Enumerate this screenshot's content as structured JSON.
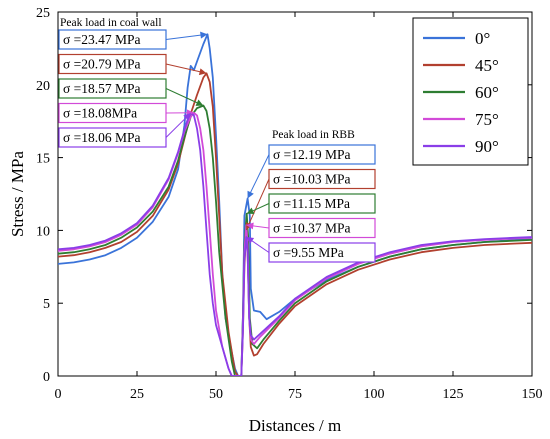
{
  "chart_data": {
    "type": "line",
    "xlabel": "Distances / m",
    "ylabel": "Stress / MPa",
    "xlim": [
      0,
      150
    ],
    "ylim": [
      0,
      25
    ],
    "xticks": [
      "0",
      "25",
      "50",
      "75",
      "100",
      "125",
      "150"
    ],
    "yticks": [
      "0",
      "5",
      "10",
      "15",
      "20",
      "25"
    ],
    "grid": false,
    "legend_position": "top-right",
    "series": [
      {
        "name": "0°",
        "color": "#3a73d9",
        "points": [
          [
            0,
            7.7
          ],
          [
            5,
            7.8
          ],
          [
            10,
            8.0
          ],
          [
            15,
            8.3
          ],
          [
            20,
            8.8
          ],
          [
            25,
            9.5
          ],
          [
            30,
            10.6
          ],
          [
            35,
            12.3
          ],
          [
            38,
            14.2
          ],
          [
            40,
            17.2
          ],
          [
            41,
            19.8
          ],
          [
            42,
            21.3
          ],
          [
            43,
            21.0
          ],
          [
            44,
            21.6
          ],
          [
            46,
            22.8
          ],
          [
            47.3,
            23.47
          ],
          [
            48,
            22.5
          ],
          [
            49,
            20.5
          ],
          [
            50,
            16.5
          ],
          [
            51,
            12.0
          ],
          [
            52,
            7.0
          ],
          [
            53,
            4.0
          ],
          [
            55,
            1.6
          ],
          [
            56,
            0.5
          ],
          [
            57,
            0.0
          ],
          [
            58,
            0.0
          ],
          [
            58.5,
            4.0
          ],
          [
            59,
            11.0
          ],
          [
            60,
            12.19
          ],
          [
            60.7,
            11.0
          ],
          [
            61,
            6.0
          ],
          [
            62,
            4.5
          ],
          [
            64,
            4.4
          ],
          [
            66,
            3.9
          ],
          [
            70,
            4.4
          ],
          [
            75,
            5.3
          ],
          [
            85,
            6.6
          ],
          [
            95,
            7.5
          ],
          [
            105,
            8.2
          ],
          [
            115,
            8.7
          ],
          [
            125,
            9.0
          ],
          [
            135,
            9.2
          ],
          [
            145,
            9.35
          ],
          [
            150,
            9.4
          ]
        ]
      },
      {
        "name": "45°",
        "color": "#b2402f",
        "points": [
          [
            0,
            8.2
          ],
          [
            5,
            8.3
          ],
          [
            10,
            8.5
          ],
          [
            15,
            8.8
          ],
          [
            20,
            9.2
          ],
          [
            25,
            9.9
          ],
          [
            30,
            11.0
          ],
          [
            35,
            12.8
          ],
          [
            38,
            14.6
          ],
          [
            40,
            16.3
          ],
          [
            42,
            18.0
          ],
          [
            44,
            19.3
          ],
          [
            46,
            20.5
          ],
          [
            47,
            20.79
          ],
          [
            48,
            20.2
          ],
          [
            49,
            18.5
          ],
          [
            50,
            15.0
          ],
          [
            51,
            11.0
          ],
          [
            52,
            7.0
          ],
          [
            54,
            3.0
          ],
          [
            56,
            0.3
          ],
          [
            57,
            0.0
          ],
          [
            58,
            0.0
          ],
          [
            58.5,
            3.0
          ],
          [
            59,
            7.5
          ],
          [
            59.6,
            10.03
          ],
          [
            60,
            8.5
          ],
          [
            60.5,
            4.0
          ],
          [
            61,
            2.0
          ],
          [
            62,
            1.4
          ],
          [
            63,
            1.5
          ],
          [
            65,
            2.2
          ],
          [
            70,
            3.6
          ],
          [
            75,
            4.8
          ],
          [
            85,
            6.3
          ],
          [
            95,
            7.3
          ],
          [
            105,
            8.0
          ],
          [
            115,
            8.5
          ],
          [
            125,
            8.8
          ],
          [
            135,
            9.0
          ],
          [
            145,
            9.1
          ],
          [
            150,
            9.15
          ]
        ]
      },
      {
        "name": "60°",
        "color": "#2e7d32",
        "points": [
          [
            0,
            8.4
          ],
          [
            5,
            8.5
          ],
          [
            10,
            8.7
          ],
          [
            15,
            9.0
          ],
          [
            20,
            9.5
          ],
          [
            25,
            10.2
          ],
          [
            30,
            11.3
          ],
          [
            35,
            13.0
          ],
          [
            38,
            14.8
          ],
          [
            40,
            16.4
          ],
          [
            42,
            17.8
          ],
          [
            44,
            18.4
          ],
          [
            46,
            18.57
          ],
          [
            47,
            18.2
          ],
          [
            48,
            17.0
          ],
          [
            49,
            15.0
          ],
          [
            50,
            12.0
          ],
          [
            51,
            8.5
          ],
          [
            53,
            4.0
          ],
          [
            55,
            1.0
          ],
          [
            56,
            0.0
          ],
          [
            58,
            0.0
          ],
          [
            58.5,
            4.0
          ],
          [
            59,
            9.0
          ],
          [
            59.7,
            11.15
          ],
          [
            60.2,
            9.5
          ],
          [
            60.7,
            4.0
          ],
          [
            61.5,
            2.2
          ],
          [
            63,
            1.9
          ],
          [
            65,
            2.5
          ],
          [
            70,
            3.8
          ],
          [
            75,
            5.0
          ],
          [
            85,
            6.5
          ],
          [
            95,
            7.5
          ],
          [
            105,
            8.2
          ],
          [
            115,
            8.7
          ],
          [
            125,
            9.0
          ],
          [
            135,
            9.2
          ],
          [
            145,
            9.3
          ],
          [
            150,
            9.35
          ]
        ]
      },
      {
        "name": "75°",
        "color": "#d24ad8",
        "points": [
          [
            0,
            8.6
          ],
          [
            5,
            8.7
          ],
          [
            10,
            8.9
          ],
          [
            15,
            9.2
          ],
          [
            20,
            9.7
          ],
          [
            25,
            10.4
          ],
          [
            30,
            11.6
          ],
          [
            35,
            13.5
          ],
          [
            38,
            15.3
          ],
          [
            40,
            16.8
          ],
          [
            42,
            17.8
          ],
          [
            43,
            18.08
          ],
          [
            44,
            17.9
          ],
          [
            45,
            17.0
          ],
          [
            46,
            15.5
          ],
          [
            47,
            13.0
          ],
          [
            48,
            10.0
          ],
          [
            49,
            7.0
          ],
          [
            50,
            4.5
          ],
          [
            52,
            2.0
          ],
          [
            54,
            0.5
          ],
          [
            55,
            0.0
          ],
          [
            58,
            0.0
          ],
          [
            58.5,
            3.5
          ],
          [
            59,
            8.5
          ],
          [
            59.6,
            10.37
          ],
          [
            60,
            9.0
          ],
          [
            60.5,
            4.0
          ],
          [
            61,
            2.5
          ],
          [
            62,
            2.2
          ],
          [
            64,
            2.7
          ],
          [
            70,
            4.0
          ],
          [
            75,
            5.2
          ],
          [
            85,
            6.7
          ],
          [
            95,
            7.7
          ],
          [
            105,
            8.4
          ],
          [
            115,
            8.9
          ],
          [
            125,
            9.2
          ],
          [
            135,
            9.35
          ],
          [
            145,
            9.45
          ],
          [
            150,
            9.5
          ]
        ]
      },
      {
        "name": "90°",
        "color": "#8a3ee8",
        "points": [
          [
            0,
            8.7
          ],
          [
            5,
            8.8
          ],
          [
            10,
            9.0
          ],
          [
            15,
            9.3
          ],
          [
            20,
            9.8
          ],
          [
            25,
            10.5
          ],
          [
            30,
            11.7
          ],
          [
            35,
            13.6
          ],
          [
            38,
            15.4
          ],
          [
            40,
            16.9
          ],
          [
            41,
            17.6
          ],
          [
            42,
            18.06
          ],
          [
            43,
            17.9
          ],
          [
            44,
            17.0
          ],
          [
            45,
            15.5
          ],
          [
            46,
            13.0
          ],
          [
            47,
            10.0
          ],
          [
            48,
            7.0
          ],
          [
            49,
            5.0
          ],
          [
            50,
            3.5
          ],
          [
            52,
            2.0
          ],
          [
            54,
            0.5
          ],
          [
            55,
            0.0
          ],
          [
            58,
            0.0
          ],
          [
            58.5,
            3.0
          ],
          [
            59,
            8.0
          ],
          [
            59.6,
            9.55
          ],
          [
            60,
            8.5
          ],
          [
            60.5,
            4.0
          ],
          [
            61,
            2.8
          ],
          [
            62,
            2.5
          ],
          [
            64,
            2.9
          ],
          [
            70,
            4.1
          ],
          [
            75,
            5.3
          ],
          [
            85,
            6.8
          ],
          [
            95,
            7.8
          ],
          [
            105,
            8.5
          ],
          [
            115,
            9.0
          ],
          [
            125,
            9.25
          ],
          [
            135,
            9.4
          ],
          [
            145,
            9.5
          ],
          [
            150,
            9.55
          ]
        ]
      }
    ],
    "annotation_groups": [
      {
        "title": "Peak load in coal wall",
        "labels": [
          {
            "text": "σ =23.47 MPa",
            "series": "0°",
            "value": 23.47,
            "peak_x": 47.3
          },
          {
            "text": "σ =20.79 MPa",
            "series": "45°",
            "value": 20.79,
            "peak_x": 47
          },
          {
            "text": "σ =18.57 MPa",
            "series": "60°",
            "value": 18.57,
            "peak_x": 46
          },
          {
            "text": "σ =18.08MPa",
            "series": "75°",
            "value": 18.08,
            "peak_x": 43
          },
          {
            "text": "σ =18.06 MPa",
            "series": "90°",
            "value": 18.06,
            "peak_x": 42
          }
        ]
      },
      {
        "title": "Peak load in RBB",
        "labels": [
          {
            "text": "σ =12.19 MPa",
            "series": "0°",
            "value": 12.19,
            "peak_x": 60
          },
          {
            "text": "σ =10.03 MPa",
            "series": "45°",
            "value": 10.03,
            "peak_x": 59.6
          },
          {
            "text": "σ =11.15 MPa",
            "series": "60°",
            "value": 11.15,
            "peak_x": 59.7
          },
          {
            "text": "σ =10.37 MPa",
            "series": "75°",
            "value": 10.37,
            "peak_x": 59.6
          },
          {
            "text": "σ =9.55 MPa",
            "series": "90°",
            "value": 9.55,
            "peak_x": 59.6
          }
        ]
      }
    ]
  }
}
